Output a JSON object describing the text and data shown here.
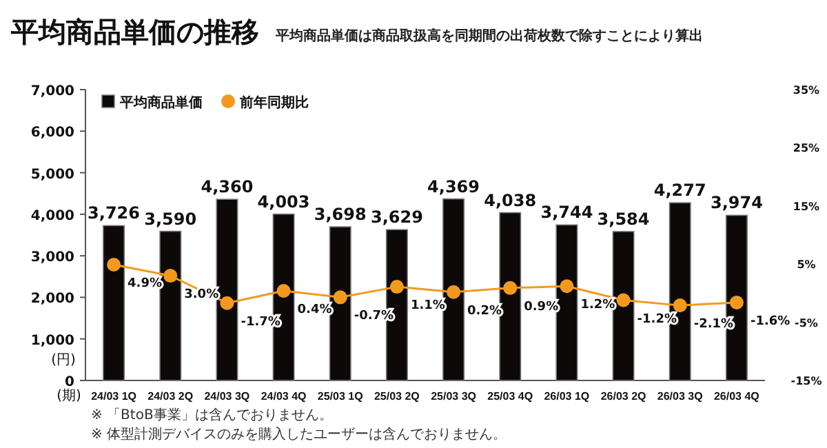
{
  "chart_data": {
    "type": "bar",
    "title": "平均商品単価の推移",
    "subtitle": "平均商品単価は商品取扱高を同期間の出荷枚数で除すことにより算出",
    "ylabel": "(円)",
    "xlabel": "(期)",
    "categories": [
      "24/03 1Q",
      "24/03 2Q",
      "24/03 3Q",
      "24/03 4Q",
      "25/03 1Q",
      "25/03 2Q",
      "25/03 3Q",
      "25/03 4Q",
      "26/03 1Q",
      "26/03 2Q",
      "26/03 3Q",
      "26/03 4Q"
    ],
    "series": [
      {
        "name": "平均商品単価",
        "color": "#0d0909",
        "values": [
          3726,
          3590,
          4360,
          4003,
          3698,
          3629,
          4369,
          4038,
          3744,
          3584,
          4277,
          3974
        ],
        "value_labels": [
          "3,726",
          "3,590",
          "4,360",
          "4,003",
          "3,698",
          "3,629",
          "4,369",
          "4,038",
          "3,744",
          "3,584",
          "4,277",
          "3,974"
        ]
      },
      {
        "name": "前年同期比",
        "type": "line",
        "axis": "y2",
        "color": "#f39a1e",
        "marker": "circle",
        "values": [
          4.9,
          3.0,
          -1.7,
          0.4,
          -0.7,
          1.1,
          0.2,
          0.9,
          1.2,
          -1.2,
          -2.1,
          -1.6
        ],
        "value_labels": [
          "4.9%",
          "3.0%",
          "-1.7%",
          "0.4%",
          "-0.7%",
          "1.1%",
          "0.2%",
          "0.9%",
          "1.2%",
          "-1.2%",
          "-2.1%",
          "-1.6%"
        ]
      }
    ],
    "ylim": [
      0,
      7000
    ],
    "yticks": [
      0,
      {
        "value": 1000,
        "label": "1,000"
      },
      {
        "value": 2000,
        "label": "2,000"
      },
      {
        "value": 3000,
        "label": "3,000"
      },
      {
        "value": 4000,
        "label": "4,000"
      },
      {
        "value": 5000,
        "label": "5,000"
      },
      {
        "value": 6000,
        "label": "6,000"
      },
      {
        "value": 7000,
        "label": "7,000"
      }
    ],
    "y2lim": [
      -15,
      35
    ],
    "y2ticks": [
      {
        "value": -15,
        "label": "-15%"
      },
      {
        "value": -5,
        "label": "-5%"
      },
      {
        "value": 5,
        "label": "5%"
      },
      {
        "value": 15,
        "label": "15%"
      },
      {
        "value": 25,
        "label": "25%"
      },
      {
        "value": 35,
        "label": "35%"
      }
    ],
    "legend": "top left",
    "grid": false,
    "annotations": [
      "※ 「BtoB事業」は含んでおりません。",
      "※ 体型計測デバイスのみを購入したユーザーは含んでおりません。"
    ]
  }
}
